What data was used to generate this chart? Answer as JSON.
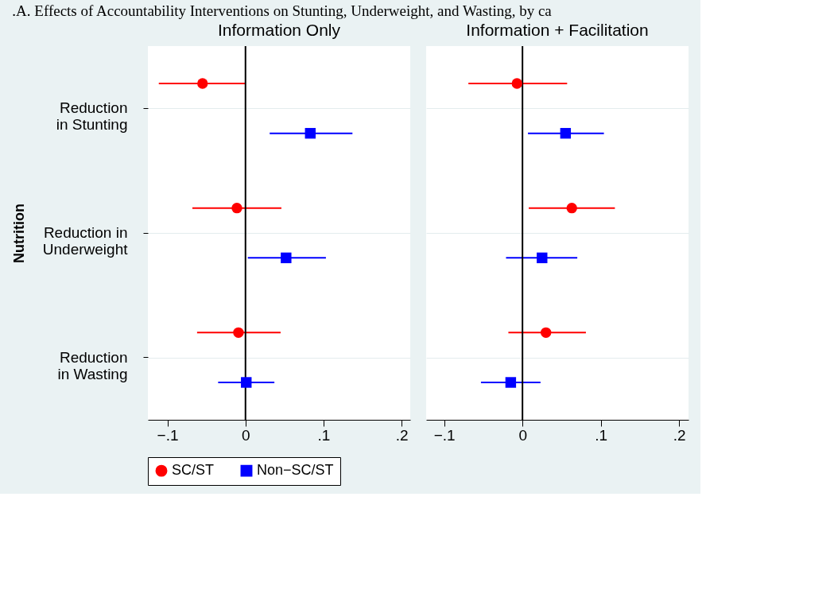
{
  "chart_data": [
    {
      "type": "scatter",
      "title": ".A. Effects of Accountability Interventions on Stunting, Underweight, and Wasting, by ca",
      "subtitle": "Information Only",
      "ylabel": "Nutrition",
      "orientation": "horizontal",
      "categories": [
        "Reduction\nin Stunting",
        "Reduction in\nUnderweight",
        "Reduction\nin Wasting"
      ],
      "series": [
        {
          "name": "SC/ST",
          "color": "#ff0000",
          "marker": "circle",
          "values": [
            -0.055,
            -0.011,
            -0.009
          ],
          "errors": [
            [
              -0.111,
              0.0
            ],
            [
              -0.068,
              0.046
            ],
            [
              -0.062,
              0.045
            ]
          ]
        },
        {
          "name": "Non−SC/ST",
          "color": "#0000ff",
          "marker": "square",
          "values": [
            0.083,
            0.052,
            0.001
          ],
          "errors": [
            [
              0.031,
              0.137
            ],
            [
              0.003,
              0.103
            ],
            [
              -0.035,
              0.037
            ]
          ]
        }
      ],
      "xlim": [
        -0.125,
        0.211
      ],
      "xticks": [
        {
          "value": -0.1,
          "label": "−.1"
        },
        0,
        {
          "value": 0.1,
          "label": ".1"
        },
        {
          "value": 0.2,
          "label": ".2"
        }
      ],
      "ref_lines": [
        {
          "axis": "x",
          "value": 0,
          "color": "#000000"
        }
      ],
      "grid": "y",
      "legend": "bottom"
    },
    {
      "type": "scatter",
      "subtitle": "Information + Facilitation",
      "orientation": "horizontal",
      "tick_labels": "x",
      "categories": [
        null,
        null,
        null
      ],
      "series": [
        {
          "name": "SC/ST",
          "color": "#ff0000",
          "marker": "circle",
          "values": [
            -0.007,
            0.063,
            0.03
          ],
          "errors": [
            [
              -0.069,
              0.057
            ],
            [
              0.008,
              0.118
            ],
            [
              -0.018,
              0.081
            ]
          ]
        },
        {
          "name": "Non−SC/ST",
          "color": "#0000ff",
          "marker": "square",
          "values": [
            0.055,
            0.025,
            -0.015
          ],
          "errors": [
            [
              0.007,
              0.104
            ],
            [
              -0.021,
              0.07
            ],
            [
              -0.053,
              0.023
            ]
          ]
        }
      ],
      "xlim": [
        -0.123,
        0.212
      ],
      "xticks": [
        {
          "value": -0.1,
          "label": "−.1"
        },
        0,
        {
          "value": 0.1,
          "label": ".1"
        },
        {
          "value": 0.2,
          "label": ".2"
        }
      ],
      "ref_lines": [
        {
          "axis": "x",
          "value": 0,
          "color": "#000000"
        }
      ],
      "grid": "y"
    }
  ]
}
